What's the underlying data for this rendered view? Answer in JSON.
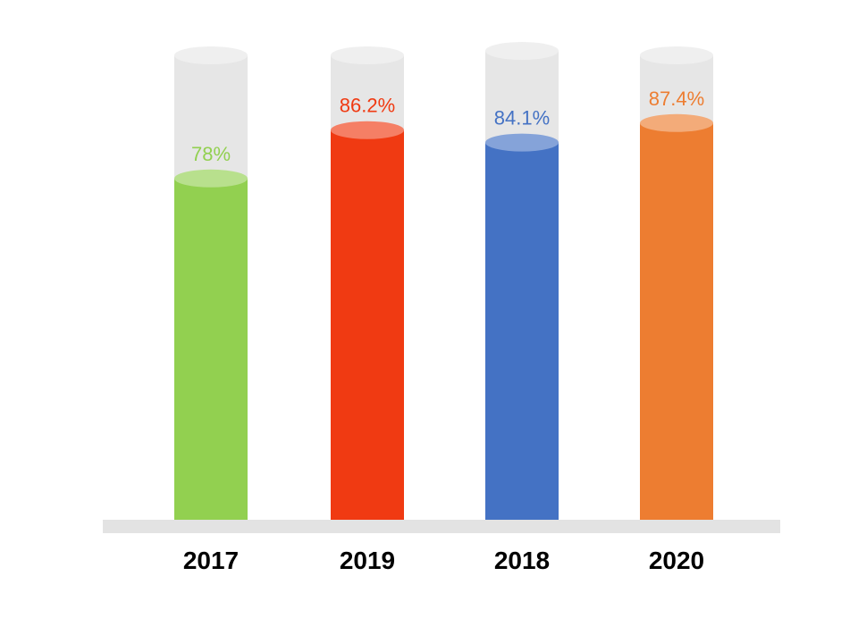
{
  "chart_data": {
    "type": "bar",
    "style": "cylinder",
    "categories": [
      "2017",
      "2019",
      "2018",
      "2020"
    ],
    "values": [
      78,
      86.2,
      84.1,
      87.4
    ],
    "value_labels": [
      "78%",
      "86.2%",
      "84.1%",
      "87.4%"
    ],
    "colors": [
      "#92d050",
      "#f03a12",
      "#4472c4",
      "#ed7d31"
    ],
    "track_color": "#e6e6e6",
    "baseline_color": "#e3e3e3",
    "ylim": [
      0,
      100
    ],
    "grid": false,
    "legend": "none"
  }
}
